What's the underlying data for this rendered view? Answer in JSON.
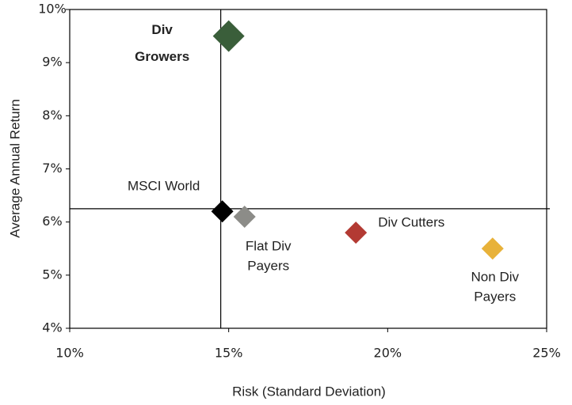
{
  "chart_data": {
    "type": "scatter",
    "x_label": "Risk (Standard Deviation)",
    "y_label": "Average Annual Return",
    "xlim": [
      10,
      25
    ],
    "ylim": [
      4,
      10
    ],
    "xticks": [
      {
        "value": 10,
        "label": "10%"
      },
      {
        "value": 15,
        "label": "15%"
      },
      {
        "value": 20,
        "label": "20%"
      },
      {
        "value": 25,
        "label": "25%"
      }
    ],
    "yticks": [
      {
        "value": 4,
        "label": "4%"
      },
      {
        "value": 5,
        "label": "5%"
      },
      {
        "value": 6,
        "label": "6%"
      },
      {
        "value": 7,
        "label": "7%"
      },
      {
        "value": 8,
        "label": "8%"
      },
      {
        "value": 9,
        "label": "9%"
      },
      {
        "value": 10,
        "label": "10%"
      }
    ],
    "reference_lines": {
      "x": 14.75,
      "y": 6.25
    },
    "points": [
      {
        "label_lines": [
          "Div",
          "Growers"
        ],
        "x": 15.0,
        "y": 9.5,
        "color": "#3a5e3a"
      },
      {
        "label_lines": [
          "MSCI World"
        ],
        "x": 14.8,
        "y": 6.2,
        "color": "#000000"
      },
      {
        "label_lines": [
          "Flat Div",
          "Payers"
        ],
        "x": 15.5,
        "y": 6.1,
        "color": "#8c8c88"
      },
      {
        "label_lines": [
          "Div Cutters"
        ],
        "x": 19.0,
        "y": 5.8,
        "color": "#b33a33"
      },
      {
        "label_lines": [
          "Non Div",
          "Payers"
        ],
        "x": 23.3,
        "y": 5.5,
        "color": "#e8b23a"
      }
    ]
  }
}
